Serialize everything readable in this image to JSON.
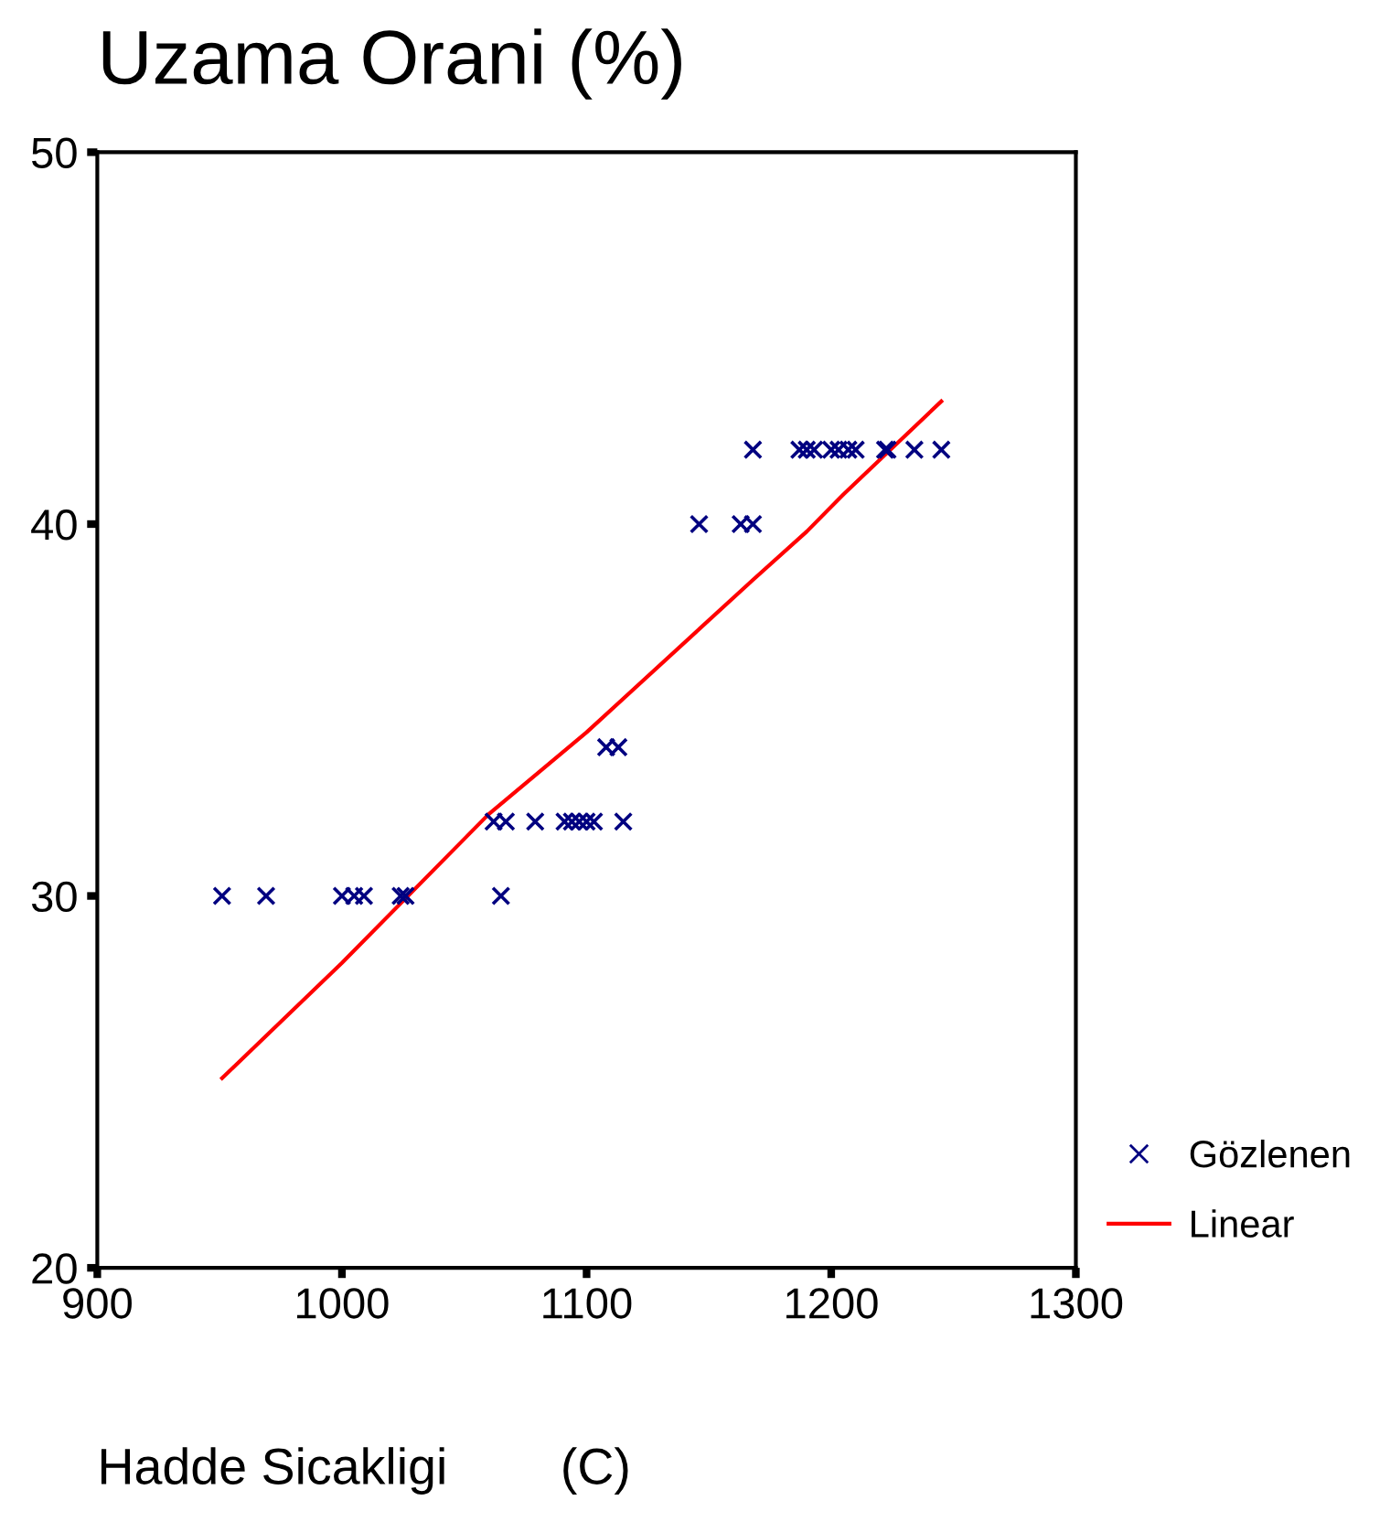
{
  "chart_data": {
    "type": "scatter",
    "title": "Uzama Orani (%)",
    "xlabel": "Hadde Sicakligi        (C)",
    "xlim": [
      900,
      1300
    ],
    "xticks": [
      900,
      1000,
      1100,
      1200,
      1300
    ],
    "ylim": [
      20,
      50
    ],
    "yticks": [
      20,
      30,
      40,
      50
    ],
    "grid": false,
    "legend": "bottom right",
    "series": [
      {
        "name": "Gözlenen",
        "type": "scatter",
        "marker": "cross",
        "color": "#000080",
        "x": [
          951,
          969,
          1000,
          1005,
          1009,
          1024,
          1026,
          1065,
          1062,
          1067,
          1079,
          1091,
          1094,
          1097,
          1100,
          1103,
          1115,
          1108,
          1113,
          1146,
          1163,
          1168,
          1168,
          1187,
          1190,
          1193,
          1200,
          1203,
          1207,
          1210,
          1222,
          1223,
          1234,
          1245
        ],
        "values": [
          30,
          30,
          30,
          30,
          30,
          30,
          30,
          30,
          32,
          32,
          32,
          32,
          32,
          32,
          32,
          32,
          32,
          34,
          34,
          40,
          40,
          40,
          42,
          42,
          42,
          42,
          42,
          42,
          42,
          42,
          42,
          42,
          42,
          42
        ]
      },
      {
        "name": "Linear",
        "type": "line",
        "marker": "none",
        "line_style": "solid",
        "color": "#ff0000",
        "x": [
          951,
          1000,
          1060,
          1100,
          1168,
          1190,
          1205,
          1245
        ],
        "values": [
          25.1,
          28.2,
          32.2,
          34.4,
          38.5,
          39.8,
          40.8,
          43.3
        ]
      }
    ]
  }
}
